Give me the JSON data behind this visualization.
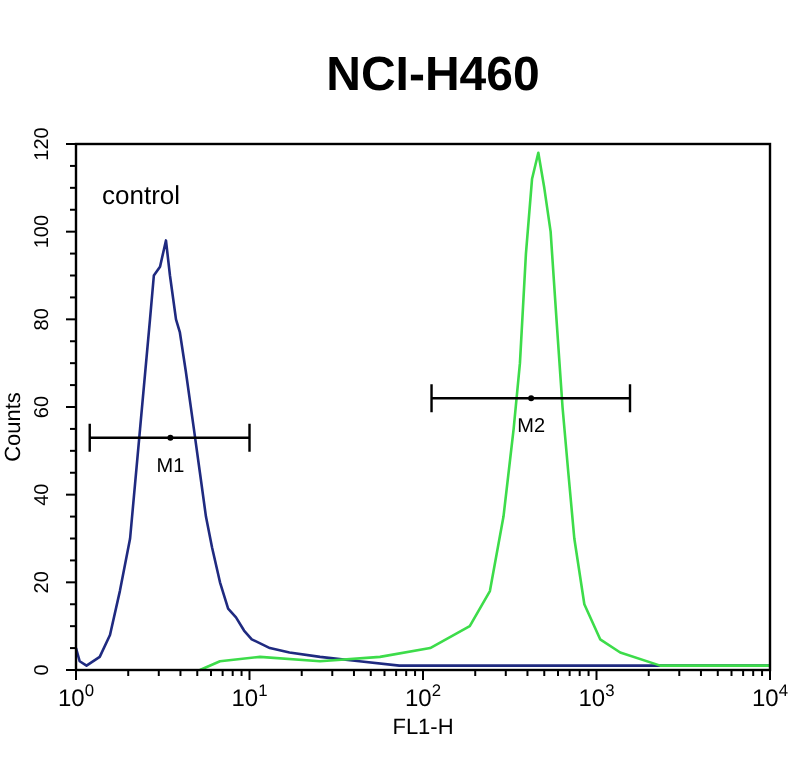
{
  "chart_data": {
    "type": "line",
    "title": "NCI-H460",
    "xlabel": "FL1-H",
    "ylabel": "Counts",
    "log": "x",
    "grid": false,
    "xlim": [
      1,
      10000
    ],
    "ylim": [
      0,
      120
    ],
    "xticks": [
      {
        "value": 1,
        "label": "10$^{0}$"
      },
      {
        "value": 2,
        "label": null
      },
      {
        "value": 3,
        "label": null
      },
      {
        "value": 4,
        "label": null
      },
      {
        "value": 5,
        "label": null
      },
      {
        "value": 6,
        "label": null
      },
      {
        "value": 7,
        "label": null
      },
      {
        "value": 8,
        "label": null
      },
      {
        "value": 9,
        "label": null
      },
      {
        "value": 10,
        "label": "10$^{1}$"
      },
      {
        "value": 20,
        "label": null
      },
      {
        "value": 30,
        "label": null
      },
      {
        "value": 40,
        "label": null
      },
      {
        "value": 50,
        "label": null
      },
      {
        "value": 60,
        "label": null
      },
      {
        "value": 70,
        "label": null
      },
      {
        "value": 80,
        "label": null
      },
      {
        "value": 90,
        "label": null
      },
      {
        "value": 100,
        "label": "10$^{2}$"
      },
      {
        "value": 200,
        "label": null
      },
      {
        "value": 300,
        "label": null
      },
      {
        "value": 400,
        "label": null
      },
      {
        "value": 500,
        "label": null
      },
      {
        "value": 600,
        "label": null
      },
      {
        "value": 700,
        "label": null
      },
      {
        "value": 800,
        "label": null
      },
      {
        "value": 900,
        "label": null
      },
      {
        "value": 1000,
        "label": "10$^{3}$"
      },
      {
        "value": 2000,
        "label": null
      },
      {
        "value": 3000,
        "label": null
      },
      {
        "value": 4000,
        "label": null
      },
      {
        "value": 5000,
        "label": null
      },
      {
        "value": 6000,
        "label": null
      },
      {
        "value": 7000,
        "label": null
      },
      {
        "value": 8000,
        "label": null
      },
      {
        "value": 9000,
        "label": null
      },
      {
        "value": 10000,
        "label": "10$^{4}$"
      }
    ],
    "yticks": [
      0,
      {
        "value": 5,
        "label": null
      },
      {
        "value": 10,
        "label": null
      },
      {
        "value": 15,
        "label": null
      },
      20,
      {
        "value": 25,
        "label": null
      },
      {
        "value": 30,
        "label": null
      },
      {
        "value": 35,
        "label": null
      },
      40,
      {
        "value": 45,
        "label": null
      },
      {
        "value": 50,
        "label": null
      },
      {
        "value": 55,
        "label": null
      },
      60,
      {
        "value": 65,
        "label": null
      },
      {
        "value": 70,
        "label": null
      },
      {
        "value": 75,
        "label": null
      },
      80,
      {
        "value": 85,
        "label": null
      },
      {
        "value": 90,
        "label": null
      },
      {
        "value": 95,
        "label": null
      },
      100,
      {
        "value": 105,
        "label": null
      },
      {
        "value": 110,
        "label": null
      },
      {
        "value": 115,
        "label": null
      },
      120
    ],
    "series": [
      {
        "color": "#1f2a80",
        "x": [
          1,
          1.05,
          1.15,
          1.37,
          1.57,
          1.79,
          2.05,
          2.34,
          2.67,
          2.81,
          3.05,
          3.3,
          3.48,
          3.77,
          3.97,
          4.3,
          4.78,
          5.18,
          5.61,
          6.08,
          6.76,
          7.53,
          8.36,
          9.3,
          10.3,
          13.1,
          17,
          25.5,
          43,
          73,
          278,
          1050,
          10000
        ],
        "values": [
          5,
          2,
          1,
          3,
          8,
          18,
          30,
          55,
          80,
          90,
          92,
          98,
          90,
          80,
          77,
          68,
          55,
          45,
          35,
          28,
          20,
          14,
          12,
          9,
          7,
          5,
          4,
          3,
          2,
          1,
          1,
          1,
          1
        ]
      },
      {
        "color": "#3ddc4a",
        "x": [
          5.18,
          6.76,
          11.5,
          25.5,
          56.5,
          110,
          186,
          243,
          291,
          333,
          362,
          392,
          425,
          462,
          500,
          544,
          588,
          637,
          688,
          745,
          851,
          1050,
          1370,
          2330,
          5170,
          10000
        ],
        "values": [
          0,
          2,
          3,
          2,
          3,
          5,
          10,
          18,
          35,
          55,
          70,
          95,
          112,
          118,
          110,
          100,
          80,
          60,
          45,
          30,
          15,
          7,
          4,
          1,
          1,
          1
        ]
      },
      {
        "type": "scatter",
        "color": "#000000",
        "x": [
          3.5
        ],
        "values": [
          53
        ],
        "xerrors": [
          [
            1.2,
            10
          ]
        ]
      },
      {
        "type": "scatter",
        "color": "#000000",
        "x": [
          420
        ],
        "values": [
          62
        ],
        "xerrors": [
          [
            112,
            1560
          ]
        ]
      }
    ],
    "annotations": [
      "control",
      {
        "text": "M1",
        "x": 3.5,
        "y": 53
      },
      {
        "text": "M2",
        "x": 420,
        "y": 62
      }
    ]
  }
}
